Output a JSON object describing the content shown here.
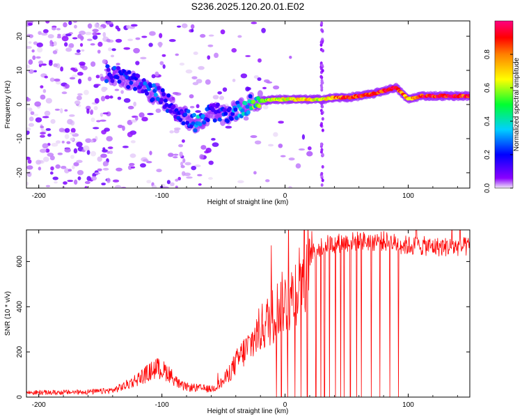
{
  "figure": {
    "title": "S236.2025.120.20.01.E02"
  },
  "chart_data": [
    {
      "type": "heatmap",
      "title": "S236.2025.120.20.01.E02",
      "xlabel": "Height of straight line (km)",
      "ylabel": "Frequency (Hz)",
      "xlim": [
        -210,
        150
      ],
      "ylim": [
        -24.5,
        24.5
      ],
      "xticks": [
        -200,
        -100,
        0,
        100
      ],
      "xtick_labels": [
        "-200",
        "-100",
        "0",
        "100"
      ],
      "yticks": [
        -20,
        -10,
        0,
        10,
        20
      ],
      "ytick_labels": [
        "-20",
        "-10",
        "0",
        "10",
        "20"
      ],
      "colorbar": {
        "label": "Normalized spectral amplitude",
        "range": [
          0,
          1
        ],
        "ticks": [
          0.0,
          0.2,
          0.4,
          0.6,
          0.8
        ],
        "tick_labels": [
          "0.0",
          "0.2",
          "0.4",
          "0.6",
          "0.8"
        ],
        "colors": [
          "#f0e6f8",
          "#8a00ff",
          "#0000ff",
          "#00d0ff",
          "#00ff30",
          "#ffff00",
          "#ff8000",
          "#ff0000",
          "#ff0080"
        ]
      },
      "ridge": {
        "x": [
          -140,
          -130,
          -120,
          -110,
          -100,
          -90,
          -80,
          -70,
          -60,
          -50,
          -40,
          -30,
          -20,
          -10,
          0,
          10,
          20,
          30,
          40,
          50,
          60,
          70,
          80,
          90,
          100,
          110,
          120,
          130,
          140,
          150
        ],
        "frequency": [
          9,
          8,
          6,
          4,
          2,
          -1,
          -4,
          -6,
          -2,
          -3,
          -2,
          0,
          1,
          1.5,
          1.5,
          1.5,
          1.5,
          1.5,
          2,
          2,
          2.5,
          3,
          4,
          5,
          1.5,
          2.5,
          2.5,
          2.5,
          2.5,
          2.5
        ],
        "amplitude": [
          0.2,
          0.2,
          0.2,
          0.25,
          0.2,
          0.15,
          0.2,
          0.3,
          0.15,
          0.2,
          0.25,
          0.4,
          0.55,
          0.6,
          0.65,
          0.7,
          0.7,
          0.6,
          0.8,
          0.85,
          0.9,
          0.85,
          0.9,
          0.9,
          0.7,
          0.9,
          0.9,
          0.9,
          0.9,
          0.85
        ]
      }
    },
    {
      "type": "line",
      "xlabel": "Height of straight line (km)",
      "ylabel": "SNR (10 * v/v)",
      "xlim": [
        -210,
        150
      ],
      "ylim": [
        0,
        740
      ],
      "xticks": [
        -200,
        -100,
        0,
        100
      ],
      "xtick_labels": [
        "-200",
        "-100",
        "0",
        "100"
      ],
      "yticks": [
        0,
        200,
        400,
        600
      ],
      "ytick_labels": [
        "0",
        "200",
        "400",
        "600"
      ],
      "series": [
        {
          "color": "#ff0000",
          "x": [
            -210,
            -190,
            -170,
            -150,
            -140,
            -130,
            -120,
            -110,
            -105,
            -100,
            -95,
            -90,
            -85,
            -80,
            -70,
            -60,
            -55,
            -50,
            -45,
            -40,
            -35,
            -30,
            -25,
            -20,
            -15,
            -10,
            -5,
            0,
            5,
            10,
            15,
            20,
            25,
            30,
            40,
            50,
            60,
            70,
            80,
            90,
            100,
            110,
            120,
            130,
            140,
            150
          ],
          "y": [
            20,
            20,
            22,
            25,
            30,
            50,
            80,
            110,
            130,
            120,
            110,
            80,
            50,
            45,
            40,
            35,
            50,
            70,
            110,
            150,
            190,
            220,
            260,
            300,
            330,
            360,
            400,
            420,
            440,
            500,
            560,
            620,
            650,
            670,
            680,
            685,
            690,
            690,
            690,
            680,
            670,
            670,
            665,
            665,
            665,
            665
          ]
        }
      ],
      "dropouts_x": [
        -7,
        -3,
        2,
        8,
        13,
        18,
        25,
        29,
        32,
        36,
        41,
        45,
        48,
        53,
        58,
        62,
        70,
        77,
        85,
        92
      ]
    }
  ]
}
